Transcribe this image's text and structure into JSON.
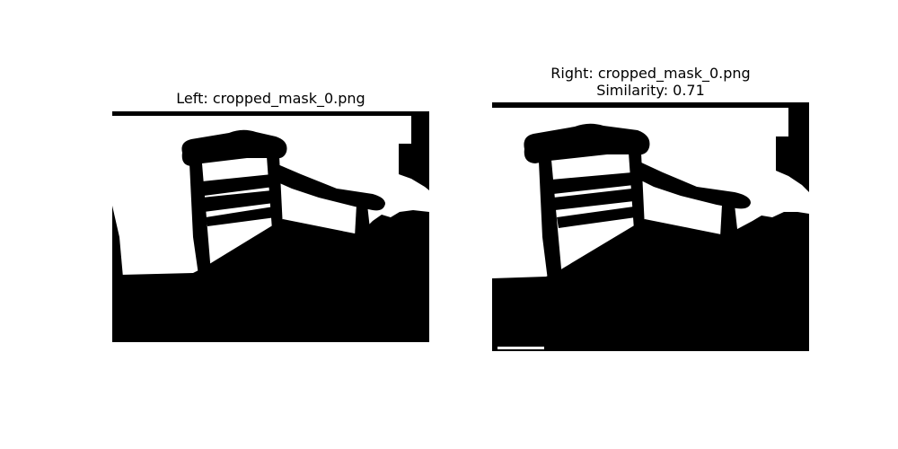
{
  "panels": {
    "left": {
      "title": "Left: cropped_mask_0.png"
    },
    "right": {
      "title": "Right: cropped_mask_0.png",
      "similarity": "Similarity: 0.71"
    }
  },
  "colors": {
    "background": "#ffffff",
    "mask_foreground": "#000000",
    "mask_background": "#ffffff"
  }
}
